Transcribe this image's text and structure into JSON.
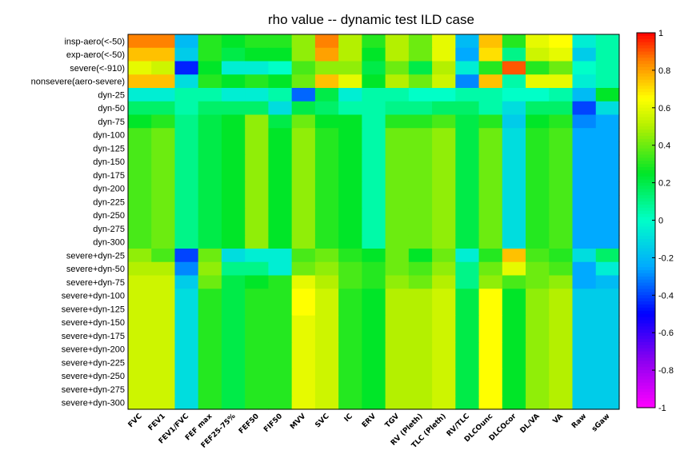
{
  "chart_data": {
    "type": "heatmap",
    "title": "rho value -- dynamic test ILD case",
    "rows": [
      "insp-aero(<-50)",
      "exp-aero(<-50)",
      "severe(<-910)",
      "nonsevere(aero-severe)",
      "dyn-25",
      "dyn-50",
      "dyn-75",
      "dyn-100",
      "dyn-125",
      "dyn-150",
      "dyn-175",
      "dyn-200",
      "dyn-225",
      "dyn-250",
      "dyn-275",
      "dyn-300",
      "severe+dyn-25",
      "severe+dyn-50",
      "severe+dyn-75",
      "severe+dyn-100",
      "severe+dyn-125",
      "severe+dyn-150",
      "severe+dyn-175",
      "severe+dyn-200",
      "severe+dyn-225",
      "severe+dyn-250",
      "severe+dyn-275",
      "severe+dyn-300"
    ],
    "columns": [
      "FVC",
      "FEV1",
      "FEV1/FVC",
      "FEF max",
      "FEF25-75%",
      "FEF50",
      "FIF50",
      "MVV",
      "SVC",
      "IC",
      "ERV",
      "TGV",
      "RV (Pleth)",
      "TLC (Pleth)",
      "RV/TLC",
      "DLCOunc",
      "DLCOcor",
      "DL/VA",
      "VA",
      "Raw",
      "sGaw"
    ],
    "colorbar": {
      "min": -1,
      "max": 1,
      "ticks": [
        "1",
        "0.8",
        "0.6",
        "0.4",
        "0.2",
        "0",
        "-0.2",
        "-0.4",
        "-0.6",
        "-0.8",
        "-1"
      ]
    },
    "values": [
      [
        0.85,
        0.85,
        -0.2,
        0.3,
        0.25,
        0.3,
        0.3,
        0.45,
        0.85,
        0.5,
        0.3,
        0.5,
        0.4,
        0.6,
        -0.2,
        0.75,
        0.3,
        0.6,
        0.65,
        -0.05,
        0.05
      ],
      [
        0.75,
        0.75,
        -0.15,
        0.3,
        0.2,
        0.25,
        0.25,
        0.45,
        0.8,
        0.5,
        0.25,
        0.5,
        0.4,
        0.6,
        -0.25,
        0.7,
        0.1,
        0.55,
        0.6,
        -0.15,
        0.05
      ],
      [
        0.6,
        0.55,
        -0.45,
        0.25,
        -0.05,
        -0.05,
        0.0,
        0.35,
        0.45,
        0.45,
        0.2,
        0.4,
        0.2,
        0.5,
        -0.05,
        0.3,
        0.9,
        0.3,
        0.4,
        0.0,
        0.05
      ],
      [
        0.75,
        0.75,
        -0.1,
        0.3,
        0.25,
        0.3,
        0.25,
        0.4,
        0.75,
        0.6,
        0.25,
        0.5,
        0.4,
        0.55,
        -0.3,
        0.75,
        0.05,
        0.6,
        0.6,
        -0.05,
        0.05
      ],
      [
        -0.05,
        -0.05,
        0.05,
        0.05,
        -0.05,
        -0.05,
        0.05,
        -0.35,
        0.2,
        -0.05,
        0.05,
        0.05,
        0.0,
        0.0,
        0.05,
        0.05,
        0.0,
        0.0,
        0.05,
        -0.2,
        0.25
      ],
      [
        0.15,
        0.15,
        0.05,
        0.15,
        0.15,
        0.15,
        -0.1,
        0.2,
        0.15,
        0.05,
        0.05,
        0.1,
        0.1,
        0.15,
        0.15,
        0.05,
        -0.1,
        0.15,
        0.15,
        -0.4,
        -0.1
      ],
      [
        0.25,
        0.3,
        0.1,
        0.2,
        0.25,
        0.45,
        0.2,
        0.4,
        0.25,
        0.25,
        0.05,
        0.3,
        0.3,
        0.35,
        0.2,
        0.3,
        -0.15,
        0.25,
        0.3,
        -0.3,
        -0.25
      ],
      [
        0.35,
        0.4,
        0.1,
        0.2,
        0.25,
        0.45,
        0.25,
        0.45,
        0.3,
        0.25,
        0.05,
        0.4,
        0.4,
        0.45,
        0.2,
        0.4,
        -0.1,
        0.3,
        0.35,
        -0.25,
        -0.25
      ],
      [
        0.35,
        0.4,
        0.1,
        0.2,
        0.25,
        0.45,
        0.25,
        0.45,
        0.3,
        0.25,
        0.05,
        0.4,
        0.4,
        0.45,
        0.2,
        0.4,
        -0.1,
        0.3,
        0.35,
        -0.25,
        -0.25
      ],
      [
        0.35,
        0.4,
        0.1,
        0.2,
        0.25,
        0.45,
        0.25,
        0.45,
        0.3,
        0.25,
        0.05,
        0.4,
        0.4,
        0.45,
        0.2,
        0.4,
        -0.1,
        0.3,
        0.35,
        -0.25,
        -0.25
      ],
      [
        0.35,
        0.4,
        0.1,
        0.2,
        0.25,
        0.45,
        0.25,
        0.45,
        0.3,
        0.25,
        0.05,
        0.4,
        0.4,
        0.45,
        0.2,
        0.4,
        -0.1,
        0.3,
        0.35,
        -0.25,
        -0.25
      ],
      [
        0.35,
        0.4,
        0.1,
        0.2,
        0.25,
        0.45,
        0.25,
        0.45,
        0.3,
        0.25,
        0.05,
        0.4,
        0.4,
        0.45,
        0.2,
        0.4,
        -0.1,
        0.3,
        0.35,
        -0.25,
        -0.25
      ],
      [
        0.35,
        0.4,
        0.1,
        0.2,
        0.25,
        0.45,
        0.25,
        0.45,
        0.3,
        0.25,
        0.05,
        0.4,
        0.4,
        0.45,
        0.2,
        0.4,
        -0.1,
        0.3,
        0.35,
        -0.25,
        -0.25
      ],
      [
        0.35,
        0.4,
        0.1,
        0.2,
        0.25,
        0.45,
        0.25,
        0.45,
        0.3,
        0.25,
        0.05,
        0.4,
        0.4,
        0.45,
        0.2,
        0.4,
        -0.1,
        0.3,
        0.35,
        -0.25,
        -0.25
      ],
      [
        0.35,
        0.4,
        0.1,
        0.2,
        0.25,
        0.45,
        0.25,
        0.45,
        0.3,
        0.25,
        0.05,
        0.4,
        0.4,
        0.45,
        0.2,
        0.4,
        -0.1,
        0.3,
        0.35,
        -0.25,
        -0.25
      ],
      [
        0.35,
        0.4,
        0.1,
        0.2,
        0.25,
        0.45,
        0.25,
        0.45,
        0.3,
        0.25,
        0.05,
        0.4,
        0.4,
        0.45,
        0.2,
        0.4,
        -0.1,
        0.3,
        0.35,
        -0.25,
        -0.25
      ],
      [
        0.45,
        0.35,
        -0.4,
        0.4,
        -0.1,
        -0.05,
        -0.05,
        0.35,
        0.4,
        0.3,
        0.25,
        0.4,
        0.25,
        0.4,
        -0.05,
        0.3,
        0.75,
        0.35,
        0.3,
        -0.1,
        0.15
      ],
      [
        0.5,
        0.5,
        -0.3,
        0.45,
        0.1,
        0.1,
        -0.05,
        0.4,
        0.45,
        0.35,
        0.3,
        0.4,
        0.35,
        0.45,
        0.1,
        0.4,
        0.6,
        0.4,
        0.35,
        -0.25,
        -0.05
      ],
      [
        0.55,
        0.55,
        -0.15,
        0.4,
        0.2,
        0.25,
        0.3,
        0.6,
        0.5,
        0.35,
        0.3,
        0.45,
        0.4,
        0.5,
        0.1,
        0.45,
        0.35,
        0.4,
        0.45,
        -0.25,
        -0.2
      ],
      [
        0.55,
        0.55,
        -0.1,
        0.3,
        0.2,
        0.3,
        0.3,
        0.65,
        0.55,
        0.3,
        0.25,
        0.5,
        0.5,
        0.55,
        0.2,
        0.65,
        0.25,
        0.45,
        0.5,
        -0.15,
        -0.15
      ],
      [
        0.55,
        0.55,
        -0.1,
        0.3,
        0.2,
        0.3,
        0.3,
        0.65,
        0.55,
        0.3,
        0.25,
        0.5,
        0.5,
        0.55,
        0.2,
        0.65,
        0.25,
        0.45,
        0.5,
        -0.15,
        -0.15
      ],
      [
        0.55,
        0.55,
        -0.1,
        0.3,
        0.2,
        0.3,
        0.3,
        0.6,
        0.55,
        0.3,
        0.25,
        0.5,
        0.5,
        0.55,
        0.2,
        0.65,
        0.25,
        0.45,
        0.5,
        -0.15,
        -0.15
      ],
      [
        0.55,
        0.55,
        -0.1,
        0.3,
        0.2,
        0.3,
        0.3,
        0.6,
        0.55,
        0.3,
        0.25,
        0.5,
        0.5,
        0.55,
        0.2,
        0.65,
        0.25,
        0.45,
        0.5,
        -0.15,
        -0.15
      ],
      [
        0.55,
        0.55,
        -0.1,
        0.3,
        0.2,
        0.3,
        0.3,
        0.6,
        0.55,
        0.3,
        0.25,
        0.5,
        0.5,
        0.55,
        0.2,
        0.65,
        0.25,
        0.45,
        0.5,
        -0.15,
        -0.15
      ],
      [
        0.55,
        0.55,
        -0.1,
        0.3,
        0.2,
        0.3,
        0.3,
        0.6,
        0.55,
        0.3,
        0.25,
        0.5,
        0.5,
        0.55,
        0.2,
        0.65,
        0.25,
        0.45,
        0.5,
        -0.15,
        -0.15
      ],
      [
        0.55,
        0.55,
        -0.1,
        0.3,
        0.2,
        0.3,
        0.3,
        0.6,
        0.55,
        0.3,
        0.25,
        0.5,
        0.5,
        0.55,
        0.2,
        0.65,
        0.25,
        0.45,
        0.5,
        -0.15,
        -0.15
      ],
      [
        0.55,
        0.55,
        -0.1,
        0.3,
        0.2,
        0.3,
        0.3,
        0.6,
        0.55,
        0.3,
        0.25,
        0.5,
        0.5,
        0.55,
        0.2,
        0.65,
        0.25,
        0.45,
        0.5,
        -0.15,
        -0.15
      ],
      [
        0.55,
        0.55,
        -0.1,
        0.3,
        0.2,
        0.3,
        0.3,
        0.6,
        0.55,
        0.3,
        0.25,
        0.5,
        0.5,
        0.55,
        0.2,
        0.65,
        0.25,
        0.45,
        0.5,
        -0.15,
        -0.15
      ]
    ]
  }
}
